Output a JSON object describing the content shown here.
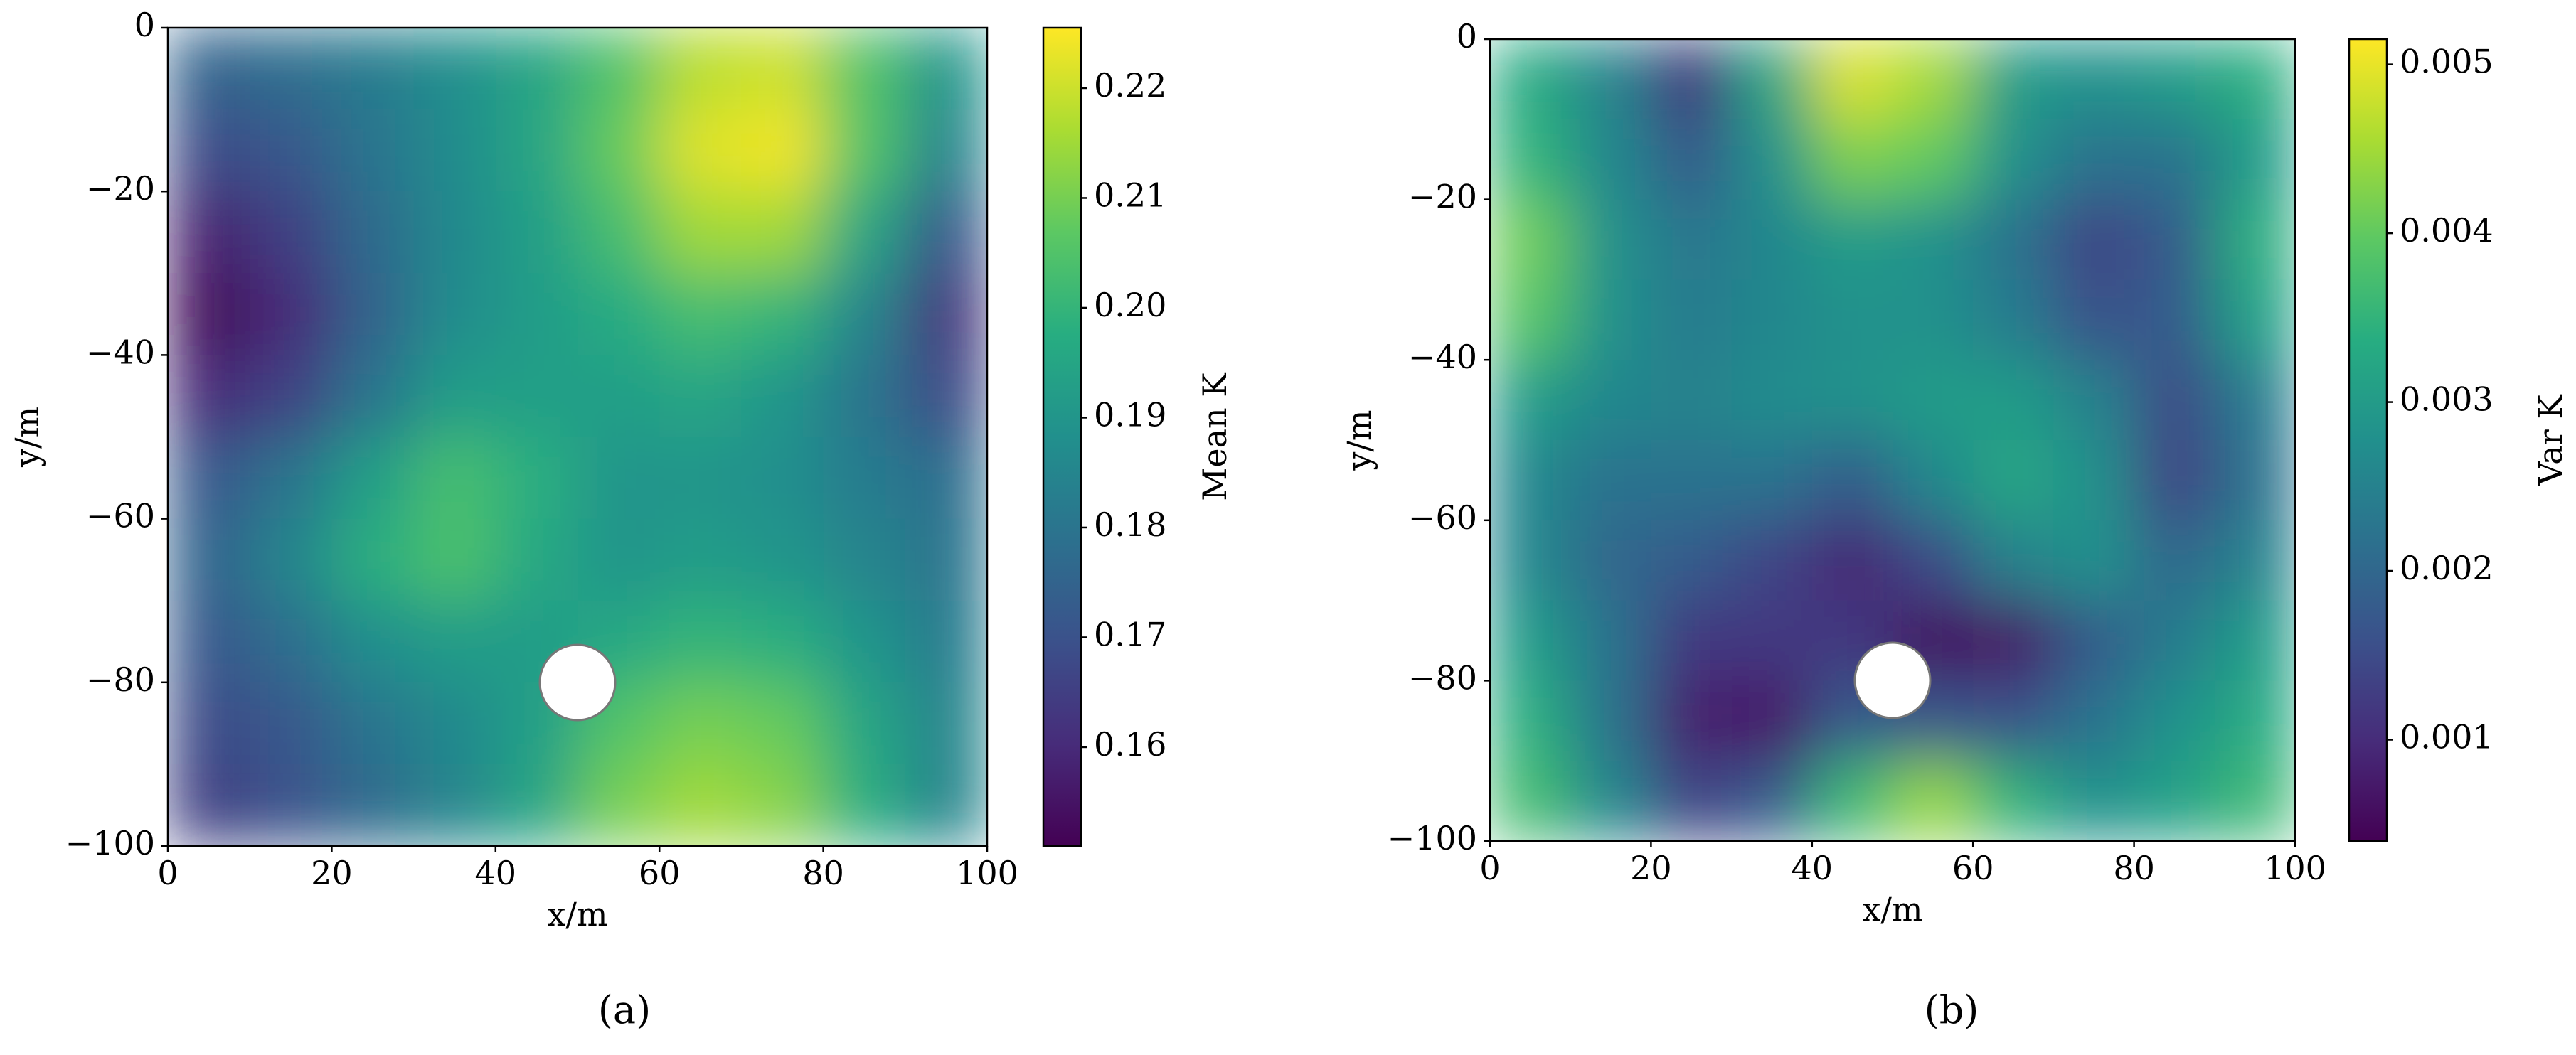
{
  "chart_data": [
    {
      "type": "heatmap",
      "caption": "(a)",
      "xlabel": "x/m",
      "ylabel": "y/m",
      "colorbar_label": "Mean K",
      "cmap": "viridis",
      "x": [
        5,
        15,
        25,
        35,
        45,
        55,
        65,
        75,
        85,
        95
      ],
      "y": [
        -5,
        -15,
        -25,
        -35,
        -45,
        -55,
        -65,
        -75,
        -85,
        -95
      ],
      "values": [
        [
          0.175,
          0.178,
          0.182,
          0.188,
          0.195,
          0.205,
          0.218,
          0.22,
          0.205,
          0.19
        ],
        [
          0.168,
          0.172,
          0.18,
          0.187,
          0.195,
          0.208,
          0.222,
          0.224,
          0.205,
          0.185
        ],
        [
          0.158,
          0.165,
          0.177,
          0.186,
          0.193,
          0.203,
          0.215,
          0.215,
          0.195,
          0.172
        ],
        [
          0.153,
          0.16,
          0.175,
          0.187,
          0.192,
          0.197,
          0.203,
          0.2,
          0.185,
          0.163
        ],
        [
          0.16,
          0.166,
          0.18,
          0.192,
          0.193,
          0.193,
          0.195,
          0.19,
          0.18,
          0.168
        ],
        [
          0.172,
          0.18,
          0.193,
          0.203,
          0.198,
          0.19,
          0.19,
          0.188,
          0.182,
          0.178
        ],
        [
          0.175,
          0.185,
          0.198,
          0.204,
          0.196,
          0.19,
          0.192,
          0.19,
          0.185,
          0.18
        ],
        [
          0.172,
          0.178,
          0.188,
          0.192,
          0.192,
          0.196,
          0.2,
          0.198,
          0.19,
          0.182
        ],
        [
          0.168,
          0.172,
          0.18,
          0.186,
          0.193,
          0.205,
          0.21,
          0.208,
          0.195,
          0.185
        ],
        [
          0.165,
          0.17,
          0.177,
          0.185,
          0.195,
          0.21,
          0.215,
          0.212,
          0.198,
          0.185
        ]
      ],
      "xlim": [
        0,
        100
      ],
      "xticks": [
        0,
        20,
        40,
        60,
        80,
        100
      ],
      "ylim": [
        -100,
        0
      ],
      "yticks": [
        0,
        {
          "value": -20,
          "label": "−20"
        },
        {
          "value": -40,
          "label": "−40"
        },
        {
          "value": -60,
          "label": "−60"
        },
        {
          "value": -80,
          "label": "−80"
        },
        {
          "value": -100,
          "label": "−100"
        }
      ],
      "clim": [
        0.151,
        0.2255
      ],
      "cticks": [
        0.16,
        0.17,
        0.18,
        0.19,
        0.2,
        0.21,
        0.22
      ],
      "cticklabels": [
        "0.16",
        "0.17",
        "0.18",
        "0.19",
        "0.20",
        "0.21",
        "0.22"
      ]
    },
    {
      "type": "heatmap",
      "caption": "(b)",
      "xlabel": "x/m",
      "ylabel": "y/m",
      "colorbar_label": "Var K",
      "cmap": "viridis",
      "x": [
        5,
        15,
        25,
        35,
        45,
        55,
        65,
        75,
        85,
        95
      ],
      "y": [
        -5,
        -15,
        -25,
        -35,
        -45,
        -55,
        -65,
        -75,
        -85,
        -95
      ],
      "values": [
        [
          0.0033,
          0.0025,
          0.0012,
          0.0032,
          0.0049,
          0.0045,
          0.003,
          0.0028,
          0.003,
          0.0034
        ],
        [
          0.0035,
          0.0026,
          0.0018,
          0.0028,
          0.0042,
          0.004,
          0.0028,
          0.0022,
          0.0022,
          0.003
        ],
        [
          0.0041,
          0.0028,
          0.0023,
          0.0026,
          0.003,
          0.0028,
          0.0022,
          0.0014,
          0.0018,
          0.0034
        ],
        [
          0.0039,
          0.0028,
          0.0024,
          0.0026,
          0.0028,
          0.0028,
          0.0024,
          0.0016,
          0.0018,
          0.0031
        ],
        [
          0.003,
          0.0026,
          0.0025,
          0.0027,
          0.0028,
          0.003,
          0.003,
          0.0025,
          0.0015,
          0.0024
        ],
        [
          0.0026,
          0.0022,
          0.0022,
          0.0022,
          0.0018,
          0.0026,
          0.0032,
          0.0028,
          0.0014,
          0.0022
        ],
        [
          0.0026,
          0.002,
          0.0018,
          0.0014,
          0.0009,
          0.0015,
          0.0025,
          0.0028,
          0.002,
          0.0025
        ],
        [
          0.003,
          0.0022,
          0.0012,
          0.0012,
          0.0012,
          0.0006,
          0.0007,
          0.0018,
          0.0024,
          0.003
        ],
        [
          0.0034,
          0.0022,
          0.0008,
          0.0007,
          0.0018,
          0.0017,
          0.0016,
          0.0022,
          0.0028,
          0.0033
        ],
        [
          0.0037,
          0.0026,
          0.0014,
          0.0018,
          0.0036,
          0.0044,
          0.0035,
          0.0028,
          0.0031,
          0.0036
        ]
      ],
      "xlim": [
        0,
        100
      ],
      "xticks": [
        0,
        20,
        40,
        60,
        80,
        100
      ],
      "ylim": [
        -100,
        0
      ],
      "yticks": [
        0,
        {
          "value": -20,
          "label": "−20"
        },
        {
          "value": -40,
          "label": "−40"
        },
        {
          "value": -60,
          "label": "−60"
        },
        {
          "value": -80,
          "label": "−80"
        },
        {
          "value": -100,
          "label": "−100"
        }
      ],
      "clim": [
        0.0004,
        0.00515
      ],
      "cticks": [
        0.001,
        0.002,
        0.003,
        0.004,
        0.005
      ]
    }
  ]
}
